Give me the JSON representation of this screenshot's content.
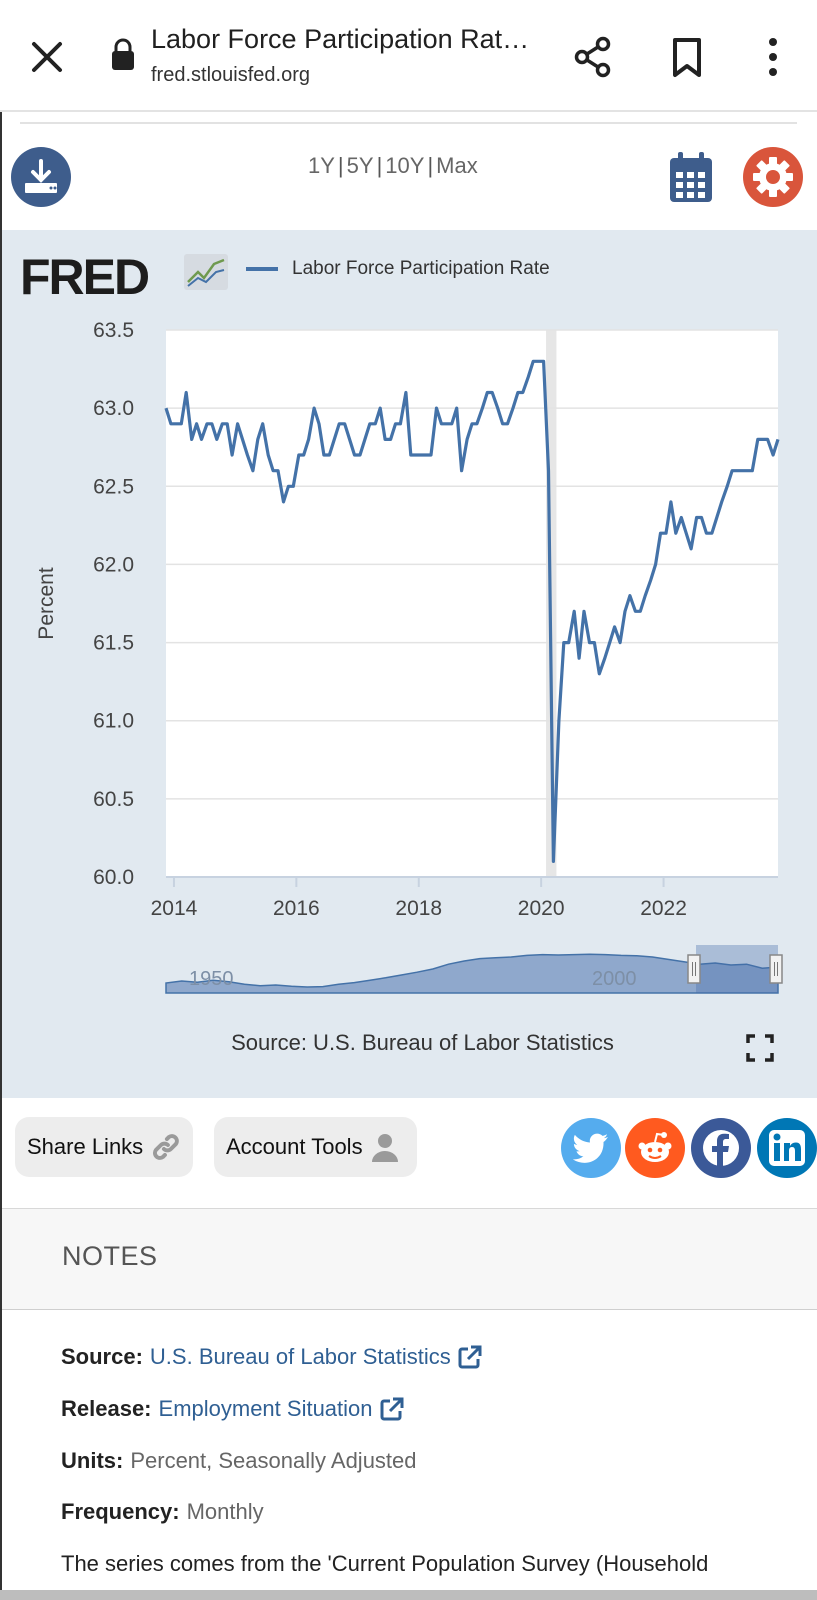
{
  "browser": {
    "title": "Labor Force Participation Rat…",
    "url": "fred.stlouisfed.org"
  },
  "toolbar": {
    "ranges": [
      "1Y",
      "5Y",
      "10Y",
      "Max"
    ]
  },
  "chart_header": {
    "logo_text": "FRED",
    "legend_label": "Labor Force Participation Rate",
    "series_color": "#4472a8"
  },
  "chart_data": {
    "type": "line",
    "ylabel": "Percent",
    "ylim": [
      60.0,
      63.5
    ],
    "yticks": [
      "63.5",
      "63.0",
      "62.5",
      "62.0",
      "61.5",
      "61.0",
      "60.5",
      "60.0"
    ],
    "xticks": [
      "2014",
      "2016",
      "2018",
      "2020",
      "2022"
    ],
    "xlim": [
      2013.87,
      2023.87
    ],
    "recession_band": [
      2020.08,
      2020.25
    ],
    "series": [
      {
        "name": "Labor Force Participation Rate",
        "x": [
          2013.87,
          2013.95,
          2014.04,
          2014.12,
          2014.2,
          2014.29,
          2014.37,
          2014.45,
          2014.54,
          2014.62,
          2014.7,
          2014.79,
          2014.87,
          2014.95,
          2015.04,
          2015.12,
          2015.2,
          2015.29,
          2015.37,
          2015.45,
          2015.54,
          2015.62,
          2015.7,
          2015.79,
          2015.87,
          2015.95,
          2016.04,
          2016.12,
          2016.2,
          2016.29,
          2016.37,
          2016.45,
          2016.54,
          2016.62,
          2016.7,
          2016.79,
          2016.87,
          2016.95,
          2017.04,
          2017.12,
          2017.2,
          2017.29,
          2017.37,
          2017.45,
          2017.54,
          2017.62,
          2017.7,
          2017.79,
          2017.87,
          2017.95,
          2018.04,
          2018.12,
          2018.2,
          2018.29,
          2018.37,
          2018.45,
          2018.54,
          2018.62,
          2018.7,
          2018.79,
          2018.87,
          2018.95,
          2019.04,
          2019.12,
          2019.2,
          2019.29,
          2019.37,
          2019.45,
          2019.54,
          2019.62,
          2019.7,
          2019.79,
          2019.87,
          2019.95,
          2020.04,
          2020.12,
          2020.2,
          2020.29,
          2020.37,
          2020.45,
          2020.54,
          2020.62,
          2020.7,
          2020.79,
          2020.87,
          2020.95,
          2021.04,
          2021.12,
          2021.2,
          2021.29,
          2021.37,
          2021.45,
          2021.54,
          2021.62,
          2021.7,
          2021.79,
          2021.87,
          2021.95,
          2022.04,
          2022.12,
          2022.2,
          2022.29,
          2022.37,
          2022.45,
          2022.54,
          2022.62,
          2022.7,
          2022.79,
          2022.87,
          2022.95,
          2023.04,
          2023.12,
          2023.2,
          2023.29,
          2023.37,
          2023.45,
          2023.54,
          2023.62,
          2023.7,
          2023.79,
          2023.87
        ],
        "values": [
          63.0,
          62.9,
          62.9,
          62.9,
          63.1,
          62.8,
          62.9,
          62.8,
          62.9,
          62.9,
          62.8,
          62.9,
          62.9,
          62.7,
          62.9,
          62.8,
          62.7,
          62.6,
          62.8,
          62.9,
          62.7,
          62.6,
          62.6,
          62.4,
          62.5,
          62.5,
          62.7,
          62.7,
          62.8,
          63.0,
          62.9,
          62.7,
          62.7,
          62.8,
          62.9,
          62.9,
          62.8,
          62.7,
          62.7,
          62.8,
          62.9,
          62.9,
          63.0,
          62.8,
          62.8,
          62.9,
          62.9,
          63.1,
          62.7,
          62.7,
          62.7,
          62.7,
          62.7,
          63.0,
          62.9,
          62.9,
          62.9,
          63.0,
          62.6,
          62.8,
          62.9,
          62.9,
          63.0,
          63.1,
          63.1,
          63.0,
          62.9,
          62.9,
          63.0,
          63.1,
          63.1,
          63.2,
          63.3,
          63.3,
          63.3,
          62.6,
          60.1,
          61.0,
          61.5,
          61.5,
          61.7,
          61.4,
          61.7,
          61.5,
          61.5,
          61.3,
          61.4,
          61.5,
          61.6,
          61.5,
          61.7,
          61.8,
          61.7,
          61.7,
          61.8,
          61.9,
          62.0,
          62.2,
          62.2,
          62.4,
          62.2,
          62.3,
          62.2,
          62.1,
          62.3,
          62.3,
          62.2,
          62.2,
          62.3,
          62.4,
          62.5,
          62.6,
          62.6,
          62.6,
          62.6,
          62.6,
          62.8,
          62.8,
          62.8,
          62.7,
          62.8
        ]
      }
    ],
    "navigator": {
      "labels": [
        "1950",
        "2000"
      ]
    }
  },
  "source_caption": "Source: U.S. Bureau of Labor Statistics",
  "share_row": {
    "share_links": "Share Links",
    "account_tools": "Account Tools",
    "socials": [
      "twitter-icon",
      "reddit-icon",
      "facebook-icon",
      "linkedin-icon"
    ]
  },
  "notes": {
    "title": "NOTES",
    "source_label": "Source:",
    "source_value": "U.S. Bureau of Labor Statistics",
    "release_label": "Release:",
    "release_value": "Employment Situation",
    "units_label": "Units:",
    "units_value": "Percent, Seasonally Adjusted",
    "frequency_label": "Frequency:",
    "frequency_value": "Monthly",
    "description": "The series comes from the 'Current Population Survey (Household"
  }
}
